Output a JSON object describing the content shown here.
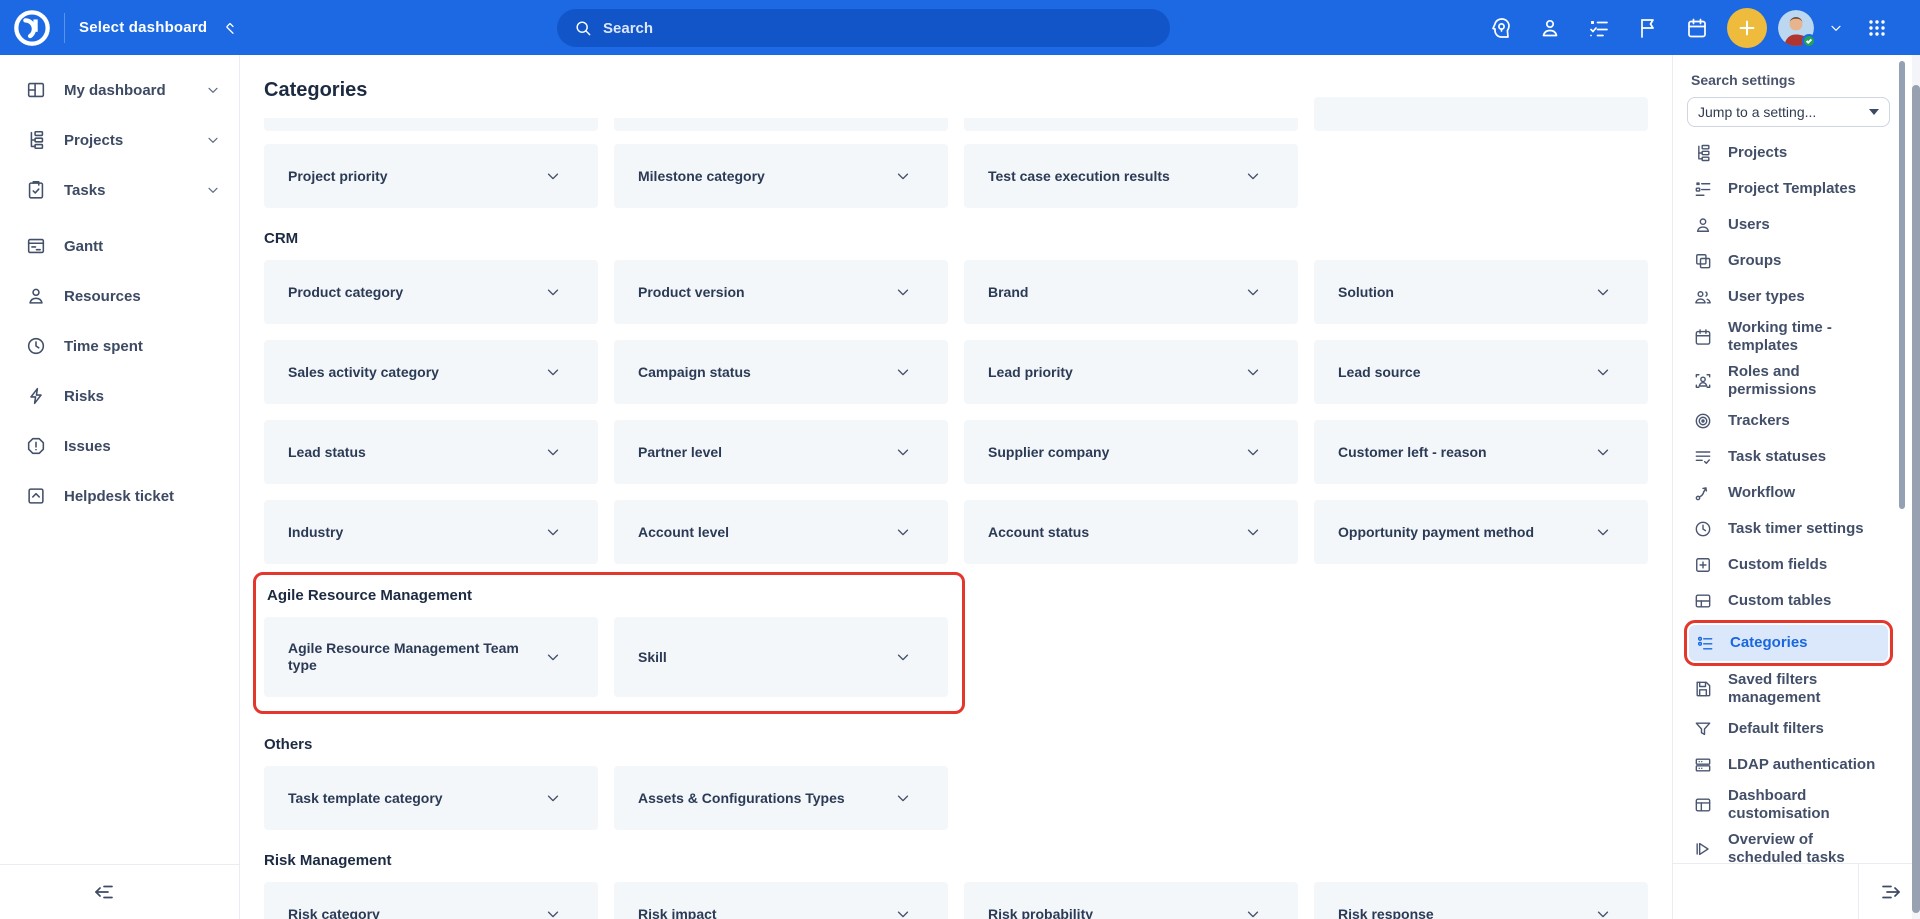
{
  "colors": {
    "topbar_blue": "#1c69e3",
    "search_pill_blue": "#1155c8",
    "accent_blue": "#1867df",
    "selected_item_bg": "#dbe8fb",
    "card_bg": "#f3f7fa",
    "text_dark": "#1d2b42",
    "highlight_red": "#e3362c",
    "plus_button_yellow": "#eebb3d",
    "status_green": "#21a35a"
  },
  "topbar": {
    "logo_icon": "easy-project-logo-icon",
    "dashboard_selector": {
      "label": "Select dashboard",
      "icon": "sort-chevrons-icon"
    },
    "search": {
      "placeholder": "Search",
      "icon": "search-icon"
    },
    "right_icons": [
      "ai-assistant-icon",
      "user-icon",
      "checklist-icon",
      "flag-icon",
      "calendar-icon",
      "plus-icon",
      "avatar",
      "chevron-down-icon",
      "apps-grid-icon"
    ]
  },
  "left_sidebar": {
    "items": [
      {
        "label": "My dashboard",
        "icon": "dashboard",
        "chevron": true,
        "group_gap": false
      },
      {
        "label": "Projects",
        "icon": "hierarchy",
        "chevron": true,
        "group_gap": false
      },
      {
        "label": "Tasks",
        "icon": "clipboard-check",
        "chevron": true,
        "group_gap": false
      },
      {
        "label": "Gantt",
        "icon": "gantt",
        "chevron": false,
        "group_gap": true
      },
      {
        "label": "Resources",
        "icon": "person",
        "chevron": false,
        "group_gap": false
      },
      {
        "label": "Time spent",
        "icon": "clock",
        "chevron": false,
        "group_gap": false
      },
      {
        "label": "Risks",
        "icon": "bolt",
        "chevron": false,
        "group_gap": false
      },
      {
        "label": "Issues",
        "icon": "alert-octagon",
        "chevron": false,
        "group_gap": false
      },
      {
        "label": "Helpdesk ticket",
        "icon": "box-arrow-up",
        "chevron": false,
        "group_gap": false
      }
    ]
  },
  "main": {
    "title": "Categories",
    "clipped_row_card_count": 4,
    "sections": [
      {
        "title": "",
        "highlighted": false,
        "cards": [
          "Project priority",
          "Milestone category",
          "Test case execution results"
        ]
      },
      {
        "title": "CRM",
        "highlighted": false,
        "cards": [
          "Product category",
          "Product version",
          "Brand",
          "Solution",
          "Sales activity category",
          "Campaign status",
          "Lead priority",
          "Lead source",
          "Lead status",
          "Partner level",
          "Supplier company",
          "Customer left - reason",
          "Industry",
          "Account level",
          "Account status",
          "Opportunity payment method"
        ]
      },
      {
        "title": "Agile Resource Management",
        "highlighted": true,
        "cards": [
          "Agile Resource Management Team type",
          "Skill"
        ]
      },
      {
        "title": "Others",
        "highlighted": false,
        "cards": [
          "Task template category",
          "Assets & Configurations Types"
        ]
      },
      {
        "title": "Risk Management",
        "highlighted": false,
        "cards": [
          "Risk category",
          "Risk impact",
          "Risk probability",
          "Risk response"
        ]
      }
    ]
  },
  "right_panel": {
    "title": "Search settings",
    "jump_select_placeholder": "Jump to a setting...",
    "items": [
      {
        "label": "Projects",
        "icon": "hierarchy",
        "selected": false,
        "outlined": false
      },
      {
        "label": "Project Templates",
        "icon": "template",
        "selected": false,
        "outlined": false
      },
      {
        "label": "Users",
        "icon": "person",
        "selected": false,
        "outlined": false
      },
      {
        "label": "Groups",
        "icon": "groups",
        "selected": false,
        "outlined": false
      },
      {
        "label": "User types",
        "icon": "user-types",
        "selected": false,
        "outlined": false
      },
      {
        "label": "Working time - templates",
        "icon": "calendar",
        "selected": false,
        "outlined": false
      },
      {
        "label": "Roles and permissions",
        "icon": "roles",
        "selected": false,
        "outlined": false
      },
      {
        "label": "Trackers",
        "icon": "target",
        "selected": false,
        "outlined": false
      },
      {
        "label": "Task statuses",
        "icon": "task-statuses",
        "selected": false,
        "outlined": false
      },
      {
        "label": "Workflow",
        "icon": "workflow",
        "selected": false,
        "outlined": false
      },
      {
        "label": "Task timer settings",
        "icon": "clock",
        "selected": false,
        "outlined": false
      },
      {
        "label": "Custom fields",
        "icon": "plus-square",
        "selected": false,
        "outlined": false
      },
      {
        "label": "Custom tables",
        "icon": "table",
        "selected": false,
        "outlined": false
      },
      {
        "label": "Categories",
        "icon": "categories",
        "selected": true,
        "outlined": true
      },
      {
        "label": "Saved filters management",
        "icon": "floppy",
        "selected": false,
        "outlined": false
      },
      {
        "label": "Default filters",
        "icon": "funnel",
        "selected": false,
        "outlined": false
      },
      {
        "label": "LDAP authentication",
        "icon": "server",
        "selected": false,
        "outlined": false
      },
      {
        "label": "Dashboard customisation",
        "icon": "window-pane",
        "selected": false,
        "outlined": false
      },
      {
        "label": "Overview of scheduled tasks",
        "icon": "scheduled",
        "selected": false,
        "outlined": false
      }
    ]
  },
  "footer": {
    "left_collapse_icon": "collapse-sidebar-icon",
    "right_expand_icon": "expand-panel-icon"
  }
}
